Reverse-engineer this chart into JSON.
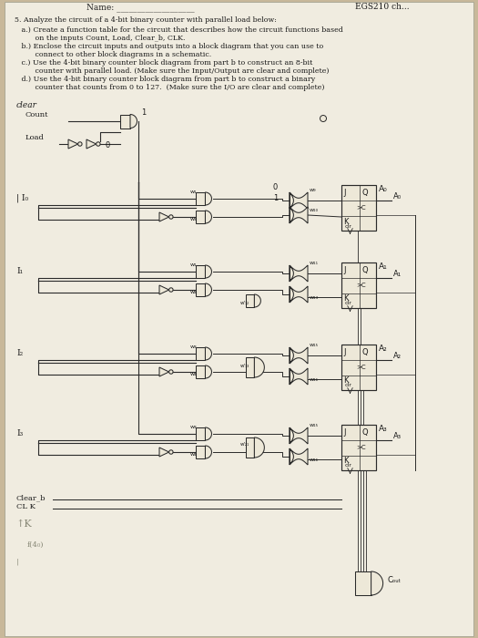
{
  "bg_color": "#c8b89a",
  "paper_color": "#f0ece0",
  "text_color": "#1a1a1a",
  "line_color": "#2a2a2a",
  "gate_fill": "#ede8d8",
  "figsize": [
    5.25,
    7.0
  ],
  "dpi": 100,
  "header_name": "Name: ___________________",
  "header_course": "EGS210 ch...",
  "problem_lines": [
    "5. Analyze the circuit of a 4-bit binary counter with parallel load below:",
    "   a.) Create a function table for the circuit that describes how the circuit functions based",
    "         on the inputs Count, Load, Clear_b, CLK.",
    "   b.) Enclose the circuit inputs and outputs into a block diagram that you can use to",
    "         connect to other block diagrams in a schematic.",
    "   c.) Use the 4-bit binary counter block diagram from part b to construct an 8-bit",
    "         counter with parallel load. (Make sure the Input/Output are clear and complete)",
    "   d.) Use the 4-bit binary counter block diagram from part b to construct a binary",
    "         counter that counts from 0 to 127.  (Make sure the I/O are clear and complete)"
  ]
}
